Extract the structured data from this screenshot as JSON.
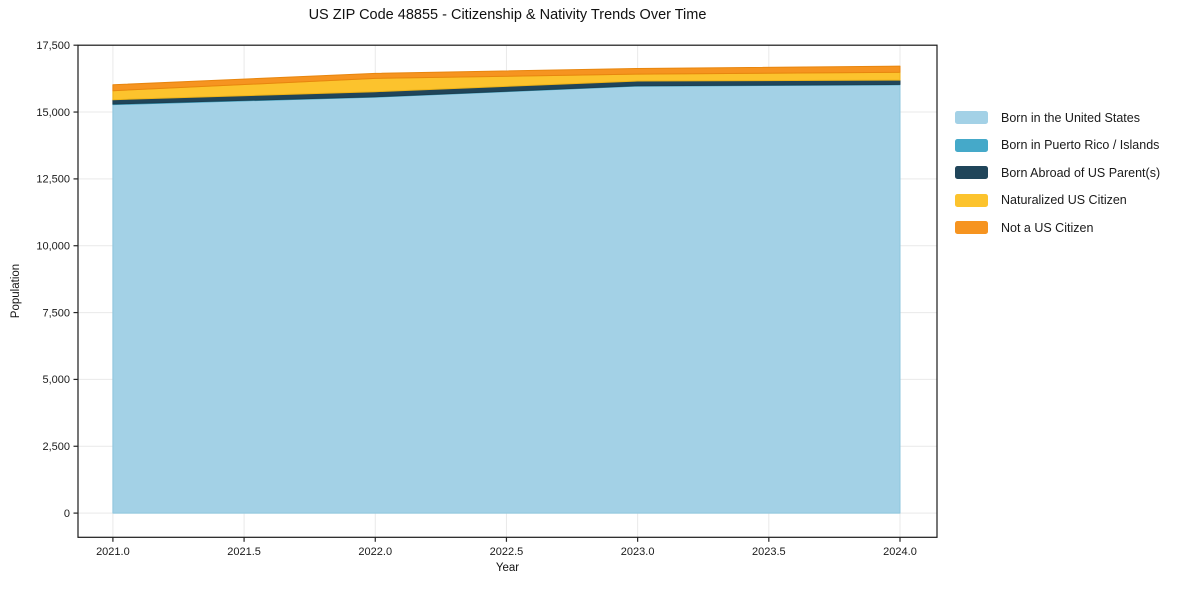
{
  "figure": {
    "title": "US ZIP Code 48855 - Citizenship & Nativity Trends Over Time",
    "xlabel": "Year",
    "ylabel": "Population"
  },
  "chart_data": {
    "type": "area",
    "stacked": true,
    "title": "US ZIP Code 48855 - Citizenship & Nativity Trends Over Time",
    "xlabel": "Year",
    "ylabel": "Population",
    "x": [
      2021,
      2022,
      2023,
      2024
    ],
    "series": [
      {
        "name": "Born in the United States",
        "color": "#a3d1e6",
        "edge": "#8ec6de",
        "values": [
          15280,
          15560,
          15970,
          16020
        ]
      },
      {
        "name": "Born in Puerto Rico / Islands",
        "color": "#45a9c9",
        "edge": "#3b9cba",
        "values": [
          20,
          15,
          15,
          15
        ]
      },
      {
        "name": "Born Abroad of US Parent(s)",
        "color": "#20455a",
        "edge": "#1d3f50",
        "values": [
          160,
          185,
          175,
          160
        ]
      },
      {
        "name": "Naturalized US Citizen",
        "color": "#fcc32d",
        "edge": "#eeb217",
        "values": [
          340,
          500,
          260,
          290
        ]
      },
      {
        "name": "Not a US Citizen",
        "color": "#f69420",
        "edge": "#e8860e",
        "values": [
          220,
          185,
          210,
          235
        ]
      }
    ],
    "totals": [
      16020,
      16445,
      16630,
      16720
    ],
    "xlim": [
      2020.867,
      2024.141
    ],
    "ylim": [
      -905,
      17500
    ],
    "xticks": {
      "values": [
        2021,
        2021.5,
        2022,
        2022.5,
        2023,
        2023.5,
        2024
      ],
      "labels": [
        "2021.0",
        "2021.5",
        "2022.0",
        "2022.5",
        "2023.0",
        "2023.5",
        "2024.0"
      ]
    },
    "yticks": {
      "values": [
        0,
        2500,
        5000,
        7500,
        10000,
        12500,
        15000,
        17500
      ],
      "labels": [
        "0",
        "2,500",
        "5,000",
        "7,500",
        "10,000",
        "12,500",
        "15,000",
        "17,500"
      ]
    },
    "grid": true,
    "legend_position": "right-outside",
    "colors": {
      "grid": "#e9e9e9",
      "spine": "#1a1a1a",
      "tick": "#262626",
      "tick_label": "#1a1a1a",
      "background": "#ffffff"
    }
  }
}
